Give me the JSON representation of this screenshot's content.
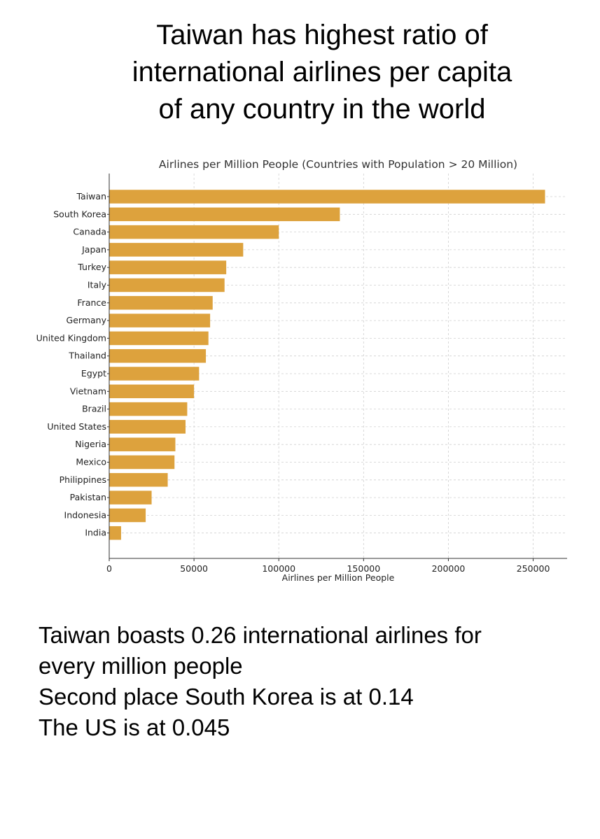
{
  "headline": [
    "Taiwan has highest ratio of",
    "international airlines per capita",
    "of any country in the world"
  ],
  "chart_data": {
    "type": "bar",
    "orientation": "horizontal",
    "title": "Airlines per Million People (Countries with Population > 20 Million)",
    "xlabel": "Airlines per Million People",
    "ylabel": "",
    "categories": [
      "Taiwan",
      "South Korea",
      "Canada",
      "Japan",
      "Turkey",
      "Italy",
      "France",
      "Germany",
      "United Kingdom",
      "Thailand",
      "Egypt",
      "Vietnam",
      "Brazil",
      "United States",
      "Nigeria",
      "Mexico",
      "Philippines",
      "Pakistan",
      "Indonesia",
      "India"
    ],
    "values": [
      257000,
      136000,
      100000,
      79000,
      69000,
      68000,
      61000,
      59500,
      58500,
      57000,
      53000,
      50000,
      46000,
      45000,
      39000,
      38500,
      34500,
      25000,
      21500,
      7000
    ],
    "xlim": [
      0,
      270000
    ],
    "xticks": [
      0,
      50000,
      100000,
      150000,
      200000,
      250000
    ],
    "xtick_labels": [
      "0",
      "50000",
      "100000",
      "150000",
      "200000",
      "250000"
    ],
    "grid": true,
    "bar_color": "#DDA23D"
  },
  "notes": [
    "Taiwan boasts 0.26 international airlines for",
    "every million people",
    "Second place South Korea is at 0.14",
    "The US is at 0.045"
  ]
}
